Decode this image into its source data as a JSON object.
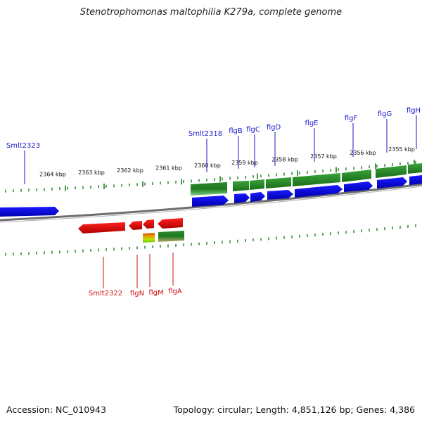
{
  "title": "Stenotrophomonas maltophilia K279a, complete genome",
  "accession": "Accession: NC_010943",
  "topology": "Topology: circular; Length: 4,851,126 bp; Genes: 4,386",
  "colors": {
    "forward_cds": "#0a10e6",
    "reverse_cds": "#e60f0f",
    "forward_gene": "#1f8a1f",
    "reverse_gene": "#1f8a1f",
    "backbone": "#777777",
    "tick": "#1f7a1f",
    "forward_label": "#1a1acc",
    "reverse_label": "#cc1111"
  },
  "kbp_ticks": [
    {
      "label": "2364 kbp",
      "pos": 2364
    },
    {
      "label": "2363 kbp",
      "pos": 2363
    },
    {
      "label": "2362 kbp",
      "pos": 2362
    },
    {
      "label": "2361 kbp",
      "pos": 2361
    },
    {
      "label": "2360 kbp",
      "pos": 2360
    },
    {
      "label": "2359 kbp",
      "pos": 2359
    },
    {
      "label": "2358 kbp",
      "pos": 2358
    },
    {
      "label": "2357 kbp",
      "pos": 2357
    },
    {
      "label": "2356 kbp",
      "pos": 2356
    },
    {
      "label": "2355 kbp",
      "pos": 2355
    }
  ],
  "forward_genes": [
    {
      "name": "Smlt2323",
      "label": "Smlt2323"
    },
    {
      "name": "Smlt2318",
      "label": "Smlt2318"
    },
    {
      "name": "flgB",
      "label": "flgB"
    },
    {
      "name": "flgC",
      "label": "flgC"
    },
    {
      "name": "flgD",
      "label": "flgD"
    },
    {
      "name": "flgE",
      "label": "flgE"
    },
    {
      "name": "flgF",
      "label": "flgF"
    },
    {
      "name": "flgG",
      "label": "flgG"
    },
    {
      "name": "flgH",
      "label": "flgH"
    }
  ],
  "reverse_genes": [
    {
      "name": "Smlt2322",
      "label": "Smlt2322"
    },
    {
      "name": "flgN",
      "label": "flgN"
    },
    {
      "name": "flgM",
      "label": "flgM"
    },
    {
      "name": "flgA",
      "label": "flgA"
    }
  ]
}
